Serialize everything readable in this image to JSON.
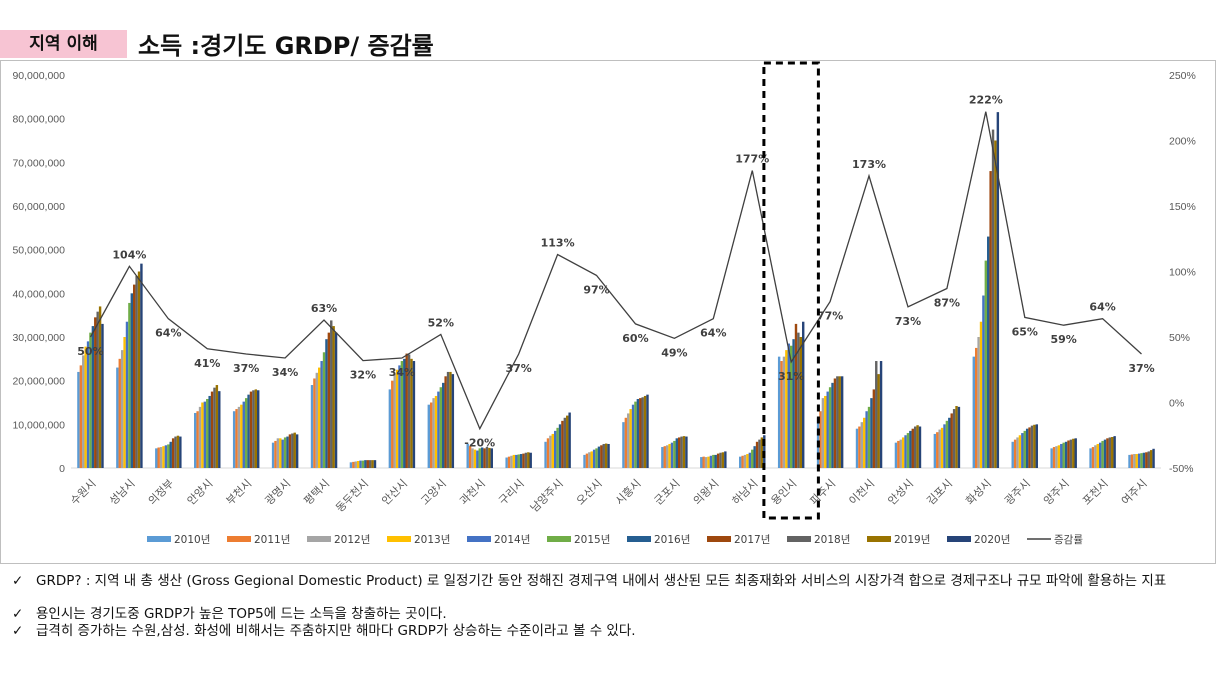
{
  "header": {
    "tag": "지역 이해",
    "title": "소득  :경기도 GRDP/ 증감률"
  },
  "colors": {
    "tag_bg": "#f7c4d3",
    "line": "#404040",
    "highlight_box": "#000000"
  },
  "chart_data": {
    "type": "bar",
    "categories": [
      "수원시",
      "성남시",
      "의정부",
      "안양시",
      "부천시",
      "광명시",
      "평택시",
      "동두천시",
      "안산시",
      "고양시",
      "과천시",
      "구리시",
      "남양주시",
      "오산시",
      "시흥시",
      "군포시",
      "의왕시",
      "하남시",
      "용인시",
      "파주시",
      "이천시",
      "안성시",
      "김포시",
      "화성시",
      "광주시",
      "양주시",
      "포천시",
      "여주시"
    ],
    "series_names": [
      "2010년",
      "2011년",
      "2012년",
      "2013년",
      "2014년",
      "2015년",
      "2016년",
      "2017년",
      "2018년",
      "2019년",
      "2020년"
    ],
    "series_colors": [
      "#5b9bd5",
      "#ed7d31",
      "#a5a5a5",
      "#ffc000",
      "#4472c4",
      "#70ad47",
      "#255e91",
      "#9e480e",
      "#636363",
      "#997300",
      "#264478"
    ],
    "bar_values": [
      [
        22000000,
        23500000,
        25800000,
        27800000,
        29000000,
        31000000,
        32500000,
        34500000,
        35800000,
        37000000,
        33000000
      ],
      [
        23000000,
        25000000,
        27000000,
        30000000,
        33500000,
        37800000,
        40000000,
        42000000,
        44000000,
        45000000,
        46800000
      ],
      [
        4500000,
        4700000,
        4800000,
        5000000,
        5200000,
        5400000,
        6000000,
        6800000,
        7200000,
        7400000,
        7200000
      ],
      [
        12600000,
        13000000,
        14000000,
        15000000,
        15200000,
        15800000,
        16500000,
        17500000,
        18400000,
        19000000,
        17600000
      ],
      [
        13000000,
        13500000,
        14000000,
        14500000,
        15200000,
        16000000,
        16800000,
        17500000,
        17800000,
        18000000,
        17800000
      ],
      [
        5800000,
        6200000,
        6800000,
        6800000,
        6500000,
        7000000,
        7200000,
        7700000,
        7900000,
        8100000,
        7700000
      ],
      [
        19000000,
        20500000,
        21800000,
        23000000,
        24500000,
        26500000,
        29500000,
        31000000,
        33800000,
        32500000,
        31000000
      ],
      [
        1300000,
        1400000,
        1500000,
        1600000,
        1700000,
        1700000,
        1800000,
        1800000,
        1800000,
        1800000,
        1800000
      ],
      [
        18000000,
        20000000,
        21500000,
        22500000,
        23500000,
        24500000,
        25000000,
        26200000,
        26000000,
        25000000,
        24500000
      ],
      [
        14500000,
        15000000,
        16000000,
        16500000,
        17500000,
        18500000,
        19500000,
        21000000,
        22000000,
        22000000,
        21500000
      ],
      [
        5500000,
        5000000,
        4500000,
        4200000,
        4000000,
        4500000,
        4700000,
        4500000,
        4800000,
        4600000,
        4500000
      ],
      [
        2400000,
        2600000,
        2800000,
        3000000,
        3000000,
        3100000,
        3200000,
        3300000,
        3500000,
        3600000,
        3500000
      ],
      [
        6000000,
        6800000,
        7400000,
        7800000,
        8500000,
        9200000,
        10000000,
        10800000,
        11500000,
        12000000,
        12700000
      ],
      [
        3000000,
        3300000,
        3600000,
        3800000,
        4200000,
        4500000,
        4900000,
        5200000,
        5500000,
        5600000,
        5500000
      ],
      [
        10500000,
        11500000,
        12500000,
        13500000,
        14500000,
        15200000,
        15800000,
        16000000,
        16200000,
        16500000,
        16800000
      ],
      [
        4800000,
        5000000,
        5200000,
        5500000,
        5800000,
        6200000,
        6800000,
        7000000,
        7200000,
        7300000,
        7200000
      ],
      [
        2500000,
        2600000,
        2500000,
        2600000,
        2800000,
        3000000,
        3000000,
        3300000,
        3500000,
        3600000,
        3800000
      ],
      [
        2600000,
        2800000,
        3000000,
        3200000,
        3500000,
        4200000,
        5000000,
        6000000,
        6500000,
        7000000,
        7500000
      ],
      [
        25500000,
        24500000,
        25500000,
        27000000,
        28500000,
        28000000,
        29500000,
        33000000,
        31000000,
        30000000,
        33500000
      ],
      [
        11500000,
        13000000,
        16000000,
        16500000,
        17500000,
        18500000,
        19500000,
        20500000,
        21000000,
        21000000,
        21000000
      ],
      [
        9000000,
        9500000,
        10500000,
        11500000,
        13000000,
        14000000,
        16000000,
        18000000,
        24500000,
        21500000,
        24500000
      ],
      [
        5800000,
        6200000,
        6500000,
        7000000,
        7500000,
        8000000,
        8500000,
        9000000,
        9500000,
        9800000,
        9500000
      ],
      [
        7800000,
        8200000,
        8800000,
        9200000,
        10000000,
        10800000,
        11500000,
        12500000,
        13500000,
        14200000,
        14000000
      ],
      [
        25500000,
        27500000,
        30000000,
        33500000,
        39500000,
        47500000,
        53000000,
        68000000,
        77500000,
        75000000,
        81500000
      ]
    ],
    "bar_values_tail": [
      [
        6000000,
        6500000,
        7000000,
        7500000,
        8000000,
        8500000,
        9000000,
        9300000,
        9700000,
        9900000,
        10000000
      ],
      [
        4500000,
        4800000,
        5000000,
        5200000,
        5500000,
        5800000,
        6000000,
        6300000,
        6500000,
        6700000,
        6800000
      ],
      [
        4500000,
        4800000,
        5200000,
        5500000,
        5800000,
        6200000,
        6500000,
        6800000,
        7000000,
        7100000,
        7300000
      ],
      [
        3000000,
        3100000,
        3200000,
        3200000,
        3300000,
        3400000,
        3500000,
        3600000,
        3800000,
        4100000,
        4400000
      ]
    ],
    "line_name": "증감률",
    "line_values": [
      50,
      104,
      64,
      41,
      37,
      34,
      63,
      32,
      34,
      52,
      -20,
      37,
      113,
      97,
      60,
      49,
      64,
      177,
      31,
      77,
      173,
      73,
      87,
      222,
      65,
      59,
      64,
      37
    ],
    "line_labels": [
      "50%",
      "104%",
      "64%",
      "41%",
      "37%",
      "34%",
      "63%",
      "32%",
      "34%",
      "52%",
      "-20%",
      "37%",
      "113%",
      "97%",
      "60%",
      "49%",
      "64%",
      "177%",
      "31%",
      "77%",
      "173%",
      "73%",
      "87%",
      "222%",
      "65%",
      "59%",
      "64%",
      "37%"
    ],
    "y_ticks": [
      "0",
      "10,000,000",
      "20,000,000",
      "30,000,000",
      "40,000,000",
      "50,000,000",
      "60,000,000",
      "70,000,000",
      "80,000,000",
      "90,000,000"
    ],
    "y2_ticks": [
      "-50%",
      "0%",
      "50%",
      "100%",
      "150%",
      "200%",
      "250%"
    ],
    "ylim": [
      0,
      90000000
    ],
    "y2lim": [
      -50,
      250
    ],
    "highlight_category": "용인시",
    "legend_position": "bottom",
    "grid": false
  },
  "notes": [
    "GRDP? : 지역 내 총 생산 (Gross Gegional Domestic Product) 로 일정기간 동안 정해진 경제구역 내에서 생산된 모든 최종재화와 서비스의 시장가격 합으로 경제구조나 규모 파악에 활용하는 지표",
    "용인시는 경기도중 GRDP가 높은 TOP5에 드는 소득을 창출하는 곳이다.",
    "급격히 증가하는 수원,삼성. 화성에 비해서는 주춤하지만 해마다 GRDP가 상승하는 수준이라고 볼 수 있다."
  ],
  "check_mark": "✓"
}
